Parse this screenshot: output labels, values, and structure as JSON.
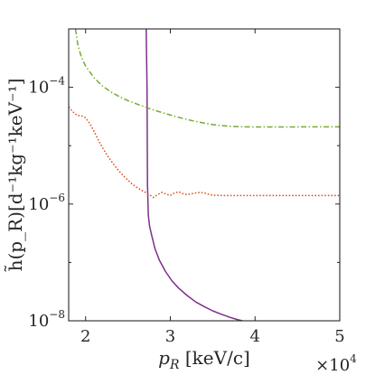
{
  "chart_data": {
    "type": "line",
    "xlabel": "p_R [keV/c]",
    "ylabel": "h̃(p_R)[d⁻¹kg⁻¹keV⁻¹]",
    "x_multiplier": "×10^4",
    "xlim": [
      18000,
      50000
    ],
    "ylim": [
      1e-08,
      0.001
    ],
    "yscale": "log",
    "xticks": [
      20000,
      30000,
      40000,
      50000
    ],
    "xtick_labels": [
      "2",
      "3",
      "4",
      "5"
    ],
    "yticks": [
      1e-08,
      1e-06,
      0.0001
    ],
    "ytick_labels": [
      "10^-8",
      "10^-6",
      "10^-4"
    ],
    "grid": false,
    "series": [
      {
        "color": "#7E2F8E",
        "style": "solid",
        "x": [
          27150,
          27250,
          27300,
          27400,
          27550,
          27800,
          28200,
          28700,
          29400,
          30200,
          31000,
          32000,
          33000,
          34000,
          35000,
          36000,
          37000,
          38000,
          38500
        ],
        "y": [
          0.001,
          0.0001,
          2.3e-06,
          6.5e-07,
          4.2e-07,
          2.9e-07,
          1.7e-07,
          1.1e-07,
          7.1e-08,
          4.8e-08,
          3.6e-08,
          2.7e-08,
          2.1e-08,
          1.75e-08,
          1.48e-08,
          1.3e-08,
          1.15e-08,
          1.04e-08,
          1e-08
        ]
      },
      {
        "color": "#77AC30",
        "style": "dashdot",
        "x": [
          18800,
          19100,
          19500,
          20000,
          21000,
          22000,
          23000,
          24000,
          25000,
          26000,
          27000,
          28000,
          29000,
          30000,
          31000,
          32000,
          33000,
          34000,
          35000,
          36000,
          37000,
          38000,
          39000,
          40000,
          42000,
          44000,
          46000,
          48000,
          50000
        ],
        "y": [
          0.001,
          0.00052,
          0.00033,
          0.00023,
          0.000145,
          0.000105,
          8.3e-05,
          6.9e-05,
          5.9e-05,
          5.2e-05,
          4.6e-05,
          4.1e-05,
          3.7e-05,
          3.35e-05,
          3.05e-05,
          2.8e-05,
          2.6e-05,
          2.43e-05,
          2.3e-05,
          2.21e-05,
          2.15e-05,
          2.12e-05,
          2.1e-05,
          2.09e-05,
          2.09e-05,
          2.09e-05,
          2.1e-05,
          2.1e-05,
          2.1e-05
        ]
      },
      {
        "color": "#D95319",
        "style": "dotted",
        "x": [
          18000,
          18500,
          19000,
          19500,
          20000,
          20500,
          21000,
          21500,
          22000,
          22500,
          23000,
          23500,
          24000,
          24500,
          25000,
          25500,
          26000,
          26500,
          27000,
          27500,
          28000,
          28500,
          29000,
          29500,
          30000,
          30500,
          31000,
          31500,
          32000,
          32500,
          33000,
          33500,
          34000,
          34500,
          35000,
          36000,
          37000,
          38000,
          40000,
          42000,
          44000,
          46000,
          48000,
          50000
        ],
        "y": [
          4.6e-05,
          3.8e-05,
          3.3e-05,
          3.25e-05,
          3e-05,
          2.4e-05,
          1.75e-05,
          1.25e-05,
          9.2e-06,
          7e-06,
          5.5e-06,
          4.4e-06,
          3.6e-06,
          3e-06,
          2.55e-06,
          2.2e-06,
          1.95e-06,
          1.75e-06,
          1.6e-06,
          1.45e-06,
          1.3e-06,
          1.45e-06,
          1.58e-06,
          1.48e-06,
          1.4e-06,
          1.55e-06,
          1.62e-06,
          1.5e-06,
          1.45e-06,
          1.5e-06,
          1.55e-06,
          1.58e-06,
          1.55e-06,
          1.47e-06,
          1.42e-06,
          1.4e-06,
          1.4e-06,
          1.4e-06,
          1.4e-06,
          1.4e-06,
          1.4e-06,
          1.4e-06,
          1.4e-06,
          1.4e-06
        ]
      }
    ]
  }
}
